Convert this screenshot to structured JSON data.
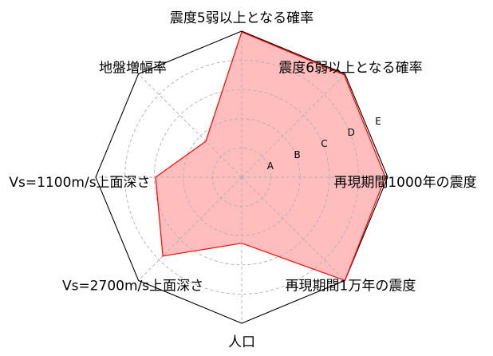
{
  "chart_data": {
    "type": "radar",
    "axes": [
      "再現期間1000年の震度",
      "震度6弱以上となる確率",
      "震度5弱以上となる確率",
      "地盤増幅率",
      "Vs=1100m/s上面深さ",
      "Vs=2700m/s上面深さ",
      "人口",
      "再現期間1万年の震度"
    ],
    "rings": [
      "A",
      "B",
      "C",
      "D",
      "E"
    ],
    "rmax": 5,
    "values": [
      4.92,
      4.96,
      4.97,
      1.74,
      2.95,
      3.82,
      2.26,
      5.0
    ],
    "fill_color": "#ffbdbd",
    "line_color": "#ff0000",
    "frame_color": "#000000",
    "grid_color": "#b0b0b0",
    "grid": true
  }
}
